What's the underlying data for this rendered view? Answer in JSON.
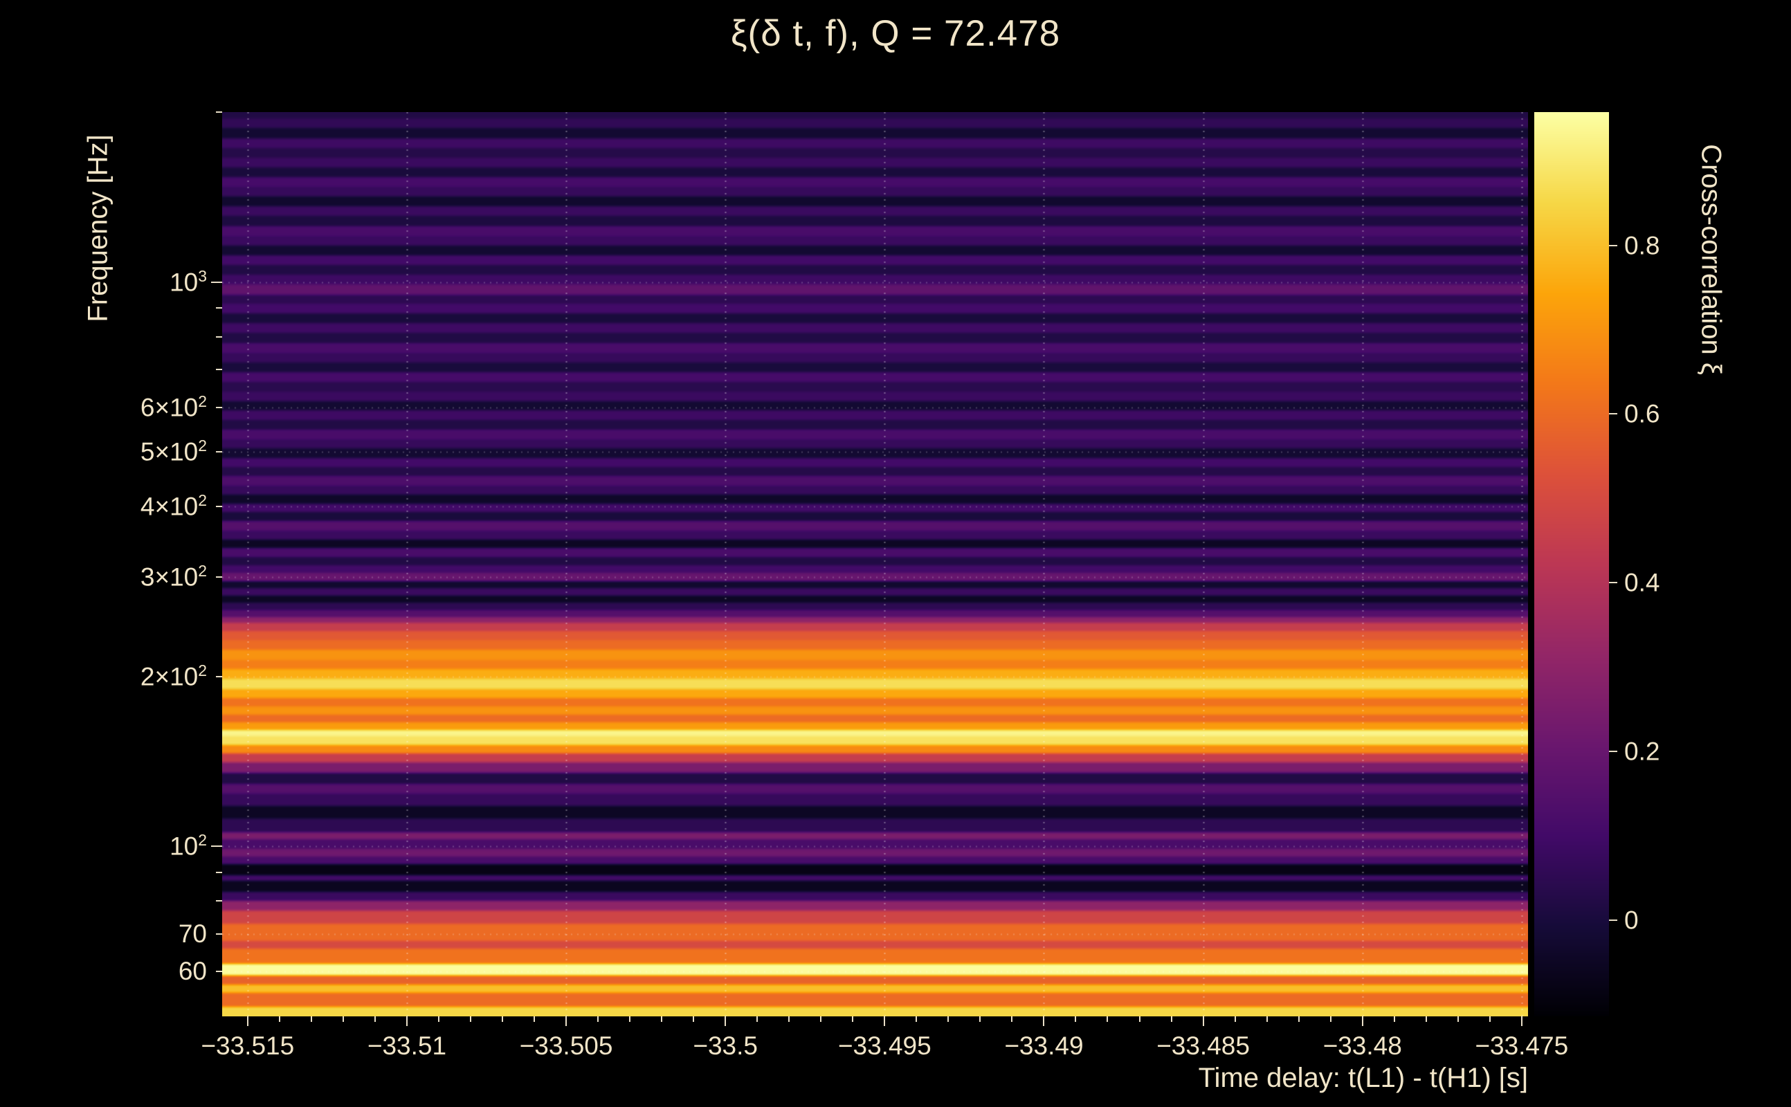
{
  "title": "ξ(δ t, f), Q = 72.478",
  "axes": {
    "x_label": "Time delay: t(L1) - t(H1) [s]",
    "y_label": "Frequency [Hz]",
    "cbar_label": "Cross-correlation ξ"
  },
  "colors": {
    "background": "#000000",
    "text": "#f1e5c8",
    "tick": "#e9dfc8",
    "grid": "#ffffff"
  },
  "chart_data": {
    "type": "heatmap",
    "title": "ξ(δ t, f), Q = 72.478",
    "xlabel": "Time delay: t(L1) - t(H1) [s]",
    "ylabel": "Frequency [Hz]",
    "zlabel": "Cross-correlation ξ",
    "x_range": [
      -33.5158,
      -33.4748
    ],
    "y_range_hz": [
      50,
      2000
    ],
    "y_scale": "log",
    "z_range": [
      -0.114,
      0.958
    ],
    "x_ticks": [
      {
        "v": -33.515,
        "label": "−33.515"
      },
      {
        "v": -33.51,
        "label": "−33.51"
      },
      {
        "v": -33.505,
        "label": "−33.505"
      },
      {
        "v": -33.5,
        "label": "−33.5"
      },
      {
        "v": -33.495,
        "label": "−33.495"
      },
      {
        "v": -33.49,
        "label": "−33.49"
      },
      {
        "v": -33.485,
        "label": "−33.485"
      },
      {
        "v": -33.48,
        "label": "−33.48"
      },
      {
        "v": -33.475,
        "label": "−33.475"
      }
    ],
    "x_minor_step": 0.001,
    "y_ticks": [
      {
        "f": 1000,
        "prefix": "10",
        "exp": "3"
      },
      {
        "f": 600,
        "prefix": "6×10",
        "exp": "2"
      },
      {
        "f": 500,
        "prefix": "5×10",
        "exp": "2"
      },
      {
        "f": 400,
        "prefix": "4×10",
        "exp": "2"
      },
      {
        "f": 300,
        "prefix": "3×10",
        "exp": "2"
      },
      {
        "f": 200,
        "prefix": "2×10",
        "exp": "2"
      },
      {
        "f": 100,
        "prefix": "10",
        "exp": "2"
      },
      {
        "f": 70,
        "prefix": "70",
        "exp": ""
      },
      {
        "f": 60,
        "prefix": "60",
        "exp": ""
      }
    ],
    "y_major_ticks": [
      100,
      1000
    ],
    "y_minor_ticks": [
      60,
      70,
      80,
      90,
      200,
      300,
      400,
      500,
      600,
      700,
      800,
      900,
      2000
    ],
    "cbar_ticks": [
      {
        "v": 0.8,
        "label": "0.8"
      },
      {
        "v": 0.6,
        "label": "0.6"
      },
      {
        "v": 0.4,
        "label": "0.4"
      },
      {
        "v": 0.2,
        "label": "0.2"
      },
      {
        "v": 0,
        "label": "0"
      }
    ],
    "colormap": "inferno",
    "colormap_stops": [
      [
        0,
        [
          0,
          0,
          4
        ]
      ],
      [
        0.1,
        [
          22,
          11,
          57
        ]
      ],
      [
        0.2,
        [
          66,
          10,
          104
        ]
      ],
      [
        0.3,
        [
          106,
          23,
          110
        ]
      ],
      [
        0.4,
        [
          147,
          38,
          103
        ]
      ],
      [
        0.5,
        [
          188,
          55,
          84
        ]
      ],
      [
        0.6,
        [
          221,
          81,
          58
        ]
      ],
      [
        0.7,
        [
          243,
          120,
          25
        ]
      ],
      [
        0.8,
        [
          252,
          165,
          10
        ]
      ],
      [
        0.9,
        [
          246,
          215,
          70
        ]
      ],
      [
        1,
        [
          252,
          255,
          164
        ]
      ]
    ],
    "grid": {
      "vertical": true,
      "horizontal": true,
      "style": "dotted"
    },
    "bands": [
      [
        50,
        52,
        0.85
      ],
      [
        52,
        55,
        0.6
      ],
      [
        55,
        57,
        0.8
      ],
      [
        57,
        59,
        0.58
      ],
      [
        59,
        62,
        0.95
      ],
      [
        62,
        66,
        0.62
      ],
      [
        66,
        68,
        0.5
      ],
      [
        68,
        73,
        0.6
      ],
      [
        73,
        77,
        0.48
      ],
      [
        77,
        80,
        0.3
      ],
      [
        80,
        83,
        0.08
      ],
      [
        83,
        87,
        -0.06
      ],
      [
        87,
        89,
        0.1
      ],
      [
        89,
        93,
        -0.08
      ],
      [
        93,
        96,
        0.12
      ],
      [
        96,
        99,
        0.22
      ],
      [
        99,
        103,
        0.12
      ],
      [
        103,
        106,
        0.25
      ],
      [
        106,
        112,
        0.05
      ],
      [
        112,
        118,
        -0.05
      ],
      [
        118,
        124,
        0.07
      ],
      [
        124,
        129,
        0.15
      ],
      [
        129,
        135,
        0.02
      ],
      [
        135,
        141,
        0.25
      ],
      [
        141,
        146,
        0.45
      ],
      [
        146,
        151,
        0.68
      ],
      [
        151,
        157,
        0.88
      ],
      [
        157,
        161,
        0.93
      ],
      [
        161,
        166,
        0.72
      ],
      [
        166,
        171,
        0.6
      ],
      [
        171,
        177,
        0.7
      ],
      [
        177,
        183,
        0.62
      ],
      [
        183,
        190,
        0.75
      ],
      [
        190,
        198,
        0.87
      ],
      [
        198,
        206,
        0.76
      ],
      [
        206,
        214,
        0.65
      ],
      [
        214,
        223,
        0.7
      ],
      [
        223,
        232,
        0.6
      ],
      [
        232,
        241,
        0.55
      ],
      [
        241,
        249,
        0.45
      ],
      [
        249,
        255,
        0.3
      ],
      [
        255,
        262,
        0.15
      ],
      [
        262,
        270,
        0.05
      ],
      [
        270,
        278,
        -0.05
      ],
      [
        278,
        287,
        0.08
      ],
      [
        287,
        295,
        -0.03
      ],
      [
        295,
        305,
        0.2
      ],
      [
        305,
        315,
        0.1
      ],
      [
        315,
        326,
        0.02
      ],
      [
        326,
        338,
        0.12
      ],
      [
        338,
        350,
        -0.05
      ],
      [
        350,
        363,
        0.08
      ],
      [
        363,
        377,
        0.15
      ],
      [
        377,
        391,
        0.0
      ],
      [
        391,
        405,
        0.1
      ],
      [
        405,
        420,
        -0.04
      ],
      [
        420,
        436,
        0.07
      ],
      [
        436,
        453,
        0.13
      ],
      [
        453,
        470,
        0.03
      ],
      [
        470,
        488,
        0.1
      ],
      [
        488,
        507,
        -0.02
      ],
      [
        507,
        527,
        0.07
      ],
      [
        527,
        548,
        0.12
      ],
      [
        548,
        570,
        0.02
      ],
      [
        570,
        592,
        0.09
      ],
      [
        592,
        615,
        -0.02
      ],
      [
        615,
        640,
        0.08
      ],
      [
        640,
        665,
        0.04
      ],
      [
        665,
        692,
        0.11
      ],
      [
        692,
        720,
        0.0
      ],
      [
        720,
        750,
        0.07
      ],
      [
        750,
        780,
        0.12
      ],
      [
        780,
        812,
        0.02
      ],
      [
        812,
        845,
        0.09
      ],
      [
        845,
        880,
        0.0
      ],
      [
        880,
        915,
        0.1
      ],
      [
        915,
        950,
        0.05
      ],
      [
        950,
        990,
        0.18
      ],
      [
        990,
        1030,
        0.09
      ],
      [
        1030,
        1072,
        0.02
      ],
      [
        1072,
        1116,
        0.1
      ],
      [
        1116,
        1161,
        -0.02
      ],
      [
        1161,
        1208,
        0.08
      ],
      [
        1208,
        1257,
        0.12
      ],
      [
        1257,
        1308,
        0.01
      ],
      [
        1308,
        1361,
        0.08
      ],
      [
        1361,
        1417,
        -0.03
      ],
      [
        1417,
        1474,
        0.07
      ],
      [
        1474,
        1534,
        0.11
      ],
      [
        1534,
        1596,
        0.0
      ],
      [
        1596,
        1661,
        0.08
      ],
      [
        1661,
        1729,
        0.03
      ],
      [
        1729,
        1799,
        0.09
      ],
      [
        1799,
        1872,
        -0.02
      ],
      [
        1872,
        1948,
        0.06
      ],
      [
        1948,
        2000,
        0.02
      ]
    ]
  }
}
